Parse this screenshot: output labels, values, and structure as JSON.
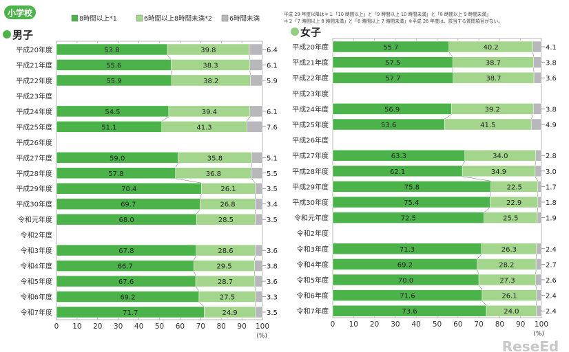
{
  "badge": "小学校",
  "legend": [
    "8時間以上*1",
    "6時間以上8時間未満*2",
    "6時間未満"
  ],
  "colors": {
    "dark": "#4cb34a",
    "light": "#a3d68c",
    "gray": "#b8b8bc",
    "badge": "#4cb34a",
    "girl_dot": "#8fcf7e"
  },
  "notes": [
    "平成 29 年度以降は＊１「10 時間以上」と「9 時間以上 10 時間未満」と「8 時間以上 9 時間未満」",
    "＊２「7 時間以上 8 時間未満」と「6 時間以上 7 時間未満」※平成 26 年度は、該当する質問項目がない。"
  ],
  "watermark": "ReseEd",
  "chart_data": [
    {
      "type": "bar",
      "title": "男子",
      "stacked": true,
      "orientation": "horizontal",
      "categories": [
        "平成20年度",
        "平成21年度",
        "平成22年度",
        "平成23年度",
        "平成24年度",
        "平成25年度",
        "平成26年度",
        "平成27年度",
        "平成28年度",
        "平成29年度",
        "平成30年度",
        "令和元年度",
        "令和2年度",
        "令和3年度",
        "令和4年度",
        "令和5年度",
        "令和6年度",
        "令和7年度"
      ],
      "series": [
        {
          "name": "8時間以上*1",
          "values": [
            53.8,
            55.6,
            55.9,
            null,
            54.5,
            51.1,
            null,
            59.0,
            57.8,
            70.4,
            69.7,
            68.0,
            null,
            67.8,
            66.7,
            67.6,
            69.2,
            71.7
          ]
        },
        {
          "name": "6時間以上8時間未満*2",
          "values": [
            39.8,
            38.3,
            38.2,
            null,
            39.4,
            41.3,
            null,
            35.8,
            36.8,
            26.1,
            26.8,
            28.5,
            null,
            28.6,
            29.5,
            28.7,
            27.5,
            24.9
          ]
        },
        {
          "name": "6時間未満",
          "values": [
            6.4,
            6.1,
            5.9,
            null,
            6.1,
            7.6,
            null,
            5.1,
            5.5,
            3.5,
            3.4,
            3.5,
            null,
            3.6,
            3.8,
            3.6,
            3.3,
            3.5
          ]
        }
      ],
      "xlim": [
        0,
        100
      ],
      "xticks": [
        "0",
        "10",
        "20",
        "30",
        "40",
        "50",
        "60",
        "70",
        "80",
        "90",
        "100"
      ],
      "xunit": "(%)"
    },
    {
      "type": "bar",
      "title": "女子",
      "stacked": true,
      "orientation": "horizontal",
      "categories": [
        "平成20年度",
        "平成21年度",
        "平成22年度",
        "平成23年度",
        "平成24年度",
        "平成25年度",
        "平成26年度",
        "平成27年度",
        "平成28年度",
        "平成29年度",
        "平成30年度",
        "令和元年度",
        "令和2年度",
        "令和3年度",
        "令和4年度",
        "令和5年度",
        "令和6年度",
        "令和7年度"
      ],
      "series": [
        {
          "name": "8時間以上*1",
          "values": [
            55.7,
            57.5,
            57.7,
            null,
            56.9,
            53.6,
            null,
            63.3,
            62.1,
            75.8,
            75.4,
            72.5,
            null,
            71.3,
            69.2,
            70.0,
            71.6,
            73.6
          ]
        },
        {
          "name": "6時間以上8時間未満*2",
          "values": [
            40.2,
            38.7,
            38.7,
            null,
            39.2,
            41.5,
            null,
            34.0,
            34.9,
            22.5,
            22.9,
            25.5,
            null,
            26.3,
            28.2,
            27.3,
            26.1,
            24.0
          ]
        },
        {
          "name": "6時間未満",
          "values": [
            4.1,
            3.8,
            3.6,
            null,
            3.8,
            4.9,
            null,
            2.8,
            3.0,
            1.7,
            1.8,
            1.9,
            null,
            2.4,
            2.7,
            2.6,
            2.4,
            2.4
          ]
        }
      ],
      "xlim": [
        0,
        100
      ],
      "xticks": [
        "0",
        "10",
        "20",
        "30",
        "40",
        "50",
        "60",
        "70",
        "80",
        "90",
        "100"
      ],
      "xunit": "(%)"
    }
  ]
}
